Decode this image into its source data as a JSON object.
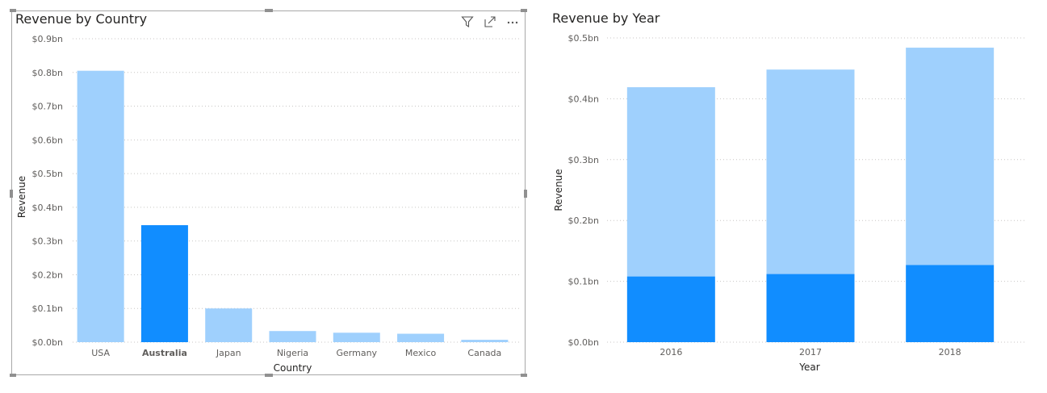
{
  "colors": {
    "light_bar": "#9fd0fd",
    "dark_bar": "#118dff",
    "grid": "#c8c6c4",
    "text": "#252423",
    "tick_text": "#605e5c"
  },
  "header_icons": [
    "filter-icon",
    "focus-mode-icon",
    "more-options-icon"
  ],
  "visuals": {
    "country": {
      "title": "Revenue by Country"
    },
    "year": {
      "title": "Revenue by Year"
    }
  },
  "chart_data": [
    {
      "type": "bar",
      "title": "Revenue by Country",
      "xlabel": "Country",
      "ylabel": "Revenue",
      "ylim": [
        0,
        0.9
      ],
      "y_ticks": [
        "$0.0bn",
        "$0.1bn",
        "$0.2bn",
        "$0.3bn",
        "$0.4bn",
        "$0.5bn",
        "$0.6bn",
        "$0.7bn",
        "$0.8bn",
        "$0.9bn"
      ],
      "categories": [
        "USA",
        "Australia",
        "Japan",
        "Nigeria",
        "Germany",
        "Mexico",
        "Canada"
      ],
      "values": [
        0.805,
        0.347,
        0.1,
        0.033,
        0.028,
        0.025,
        0.007
      ],
      "highlighted_category": "Australia",
      "grid": true
    },
    {
      "type": "bar",
      "stacked": true,
      "title": "Revenue by Year",
      "xlabel": "Year",
      "ylabel": "Revenue",
      "ylim": [
        0,
        0.5
      ],
      "y_ticks": [
        "$0.0bn",
        "$0.1bn",
        "$0.2bn",
        "$0.3bn",
        "$0.4bn",
        "$0.5bn"
      ],
      "categories": [
        "2016",
        "2017",
        "2018"
      ],
      "series": [
        {
          "values": [
            0.108,
            0.112,
            0.127
          ]
        },
        {
          "values": [
            0.311,
            0.336,
            0.357
          ]
        }
      ],
      "grid": true
    }
  ]
}
